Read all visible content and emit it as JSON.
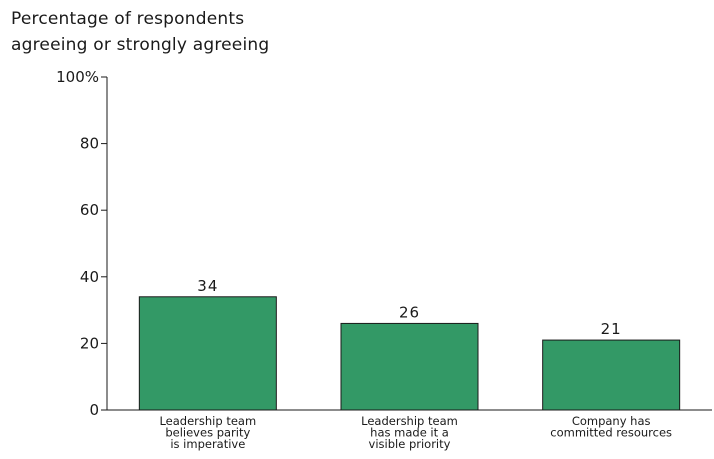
{
  "chart_data": {
    "type": "bar",
    "title_lines": [
      "Percentage of respondents",
      "agreeing or strongly agreeing"
    ],
    "categories": [
      [
        "Leadership team",
        "believes parity",
        "is imperative"
      ],
      [
        "Leadership team",
        "has made it a",
        "visible priority"
      ],
      [
        "Company has",
        "committed resources"
      ]
    ],
    "values": [
      34,
      26,
      21
    ],
    "value_labels": [
      "34",
      "26",
      "21"
    ],
    "ylim": [
      0,
      100
    ],
    "y_ticks": [
      {
        "value": 0,
        "label": "0"
      },
      {
        "value": 20,
        "label": "20"
      },
      {
        "value": 40,
        "label": "40"
      },
      {
        "value": 60,
        "label": "60"
      },
      {
        "value": 80,
        "label": "80"
      },
      {
        "value": 100,
        "label": "100%"
      }
    ],
    "bar_color": "#339966",
    "grid": false
  }
}
